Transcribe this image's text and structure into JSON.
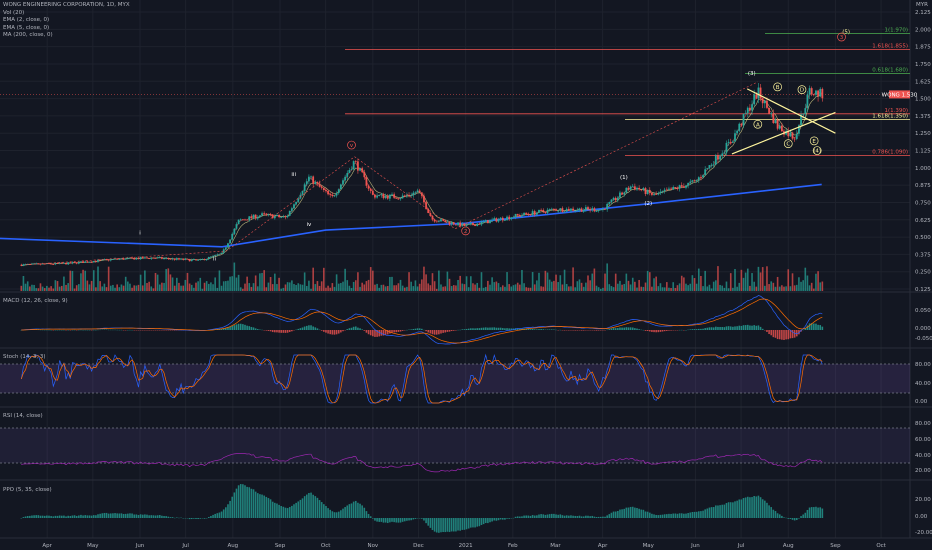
{
  "header": {
    "symbol_line": "WONG ENGINEERING CORPORATION, 1D, MYX",
    "currency": "MYR",
    "indicators": [
      "Vol (20)",
      "EMA (2, close, 0)",
      "EMA (5, close, 0)",
      "MA (200, close, 0)"
    ]
  },
  "panes": {
    "macd": "MACD (12, 26, close, 9)",
    "stoch": "Stoch (14, 3, 3)",
    "rsi": "RSI (14, close)",
    "ppo": "PPO (5, 35, close)"
  },
  "price_tag": {
    "label": "WONG",
    "value": "1.530",
    "color": "#ef5350"
  },
  "colors": {
    "background": "#131722",
    "up": "#26a69a",
    "down": "#ef5350",
    "ma200": "#2962ff",
    "trend": "#fff59d",
    "fib": "#ef5350",
    "fib_green": "#4caf50",
    "oscillator_band": "#7e57c2"
  },
  "chart_data": {
    "type": "candlestick",
    "price_axis_ticks": [
      "2.125",
      "2.000",
      "1.875",
      "1.750",
      "1.625",
      "1.500",
      "1.375",
      "1.250",
      "1.125",
      "1.000",
      "0.875",
      "0.750",
      "0.625",
      "0.500",
      "0.375",
      "0.250",
      "0.125"
    ],
    "x_axis_ticks": [
      "Apr",
      "May",
      "Jun",
      "Jul",
      "Aug",
      "Sep",
      "Oct",
      "Nov",
      "Dec",
      "2021",
      "Feb",
      "Mar",
      "Apr",
      "May",
      "Jun",
      "Jul",
      "Aug",
      "Sep",
      "Oct"
    ],
    "price_path": [
      {
        "date": "2020-03-18",
        "price": 0.3
      },
      {
        "date": "2020-04-15",
        "price": 0.31
      },
      {
        "date": "2020-05-15",
        "price": 0.34
      },
      {
        "date": "2020-06-10",
        "price": 0.35
      },
      {
        "date": "2020-07-10",
        "price": 0.33
      },
      {
        "date": "2020-07-25",
        "price": 0.38
      },
      {
        "date": "2020-08-05",
        "price": 0.62
      },
      {
        "date": "2020-08-20",
        "price": 0.66
      },
      {
        "date": "2020-09-05",
        "price": 0.64
      },
      {
        "date": "2020-09-20",
        "price": 0.93
      },
      {
        "date": "2020-10-05",
        "price": 0.78
      },
      {
        "date": "2020-10-20",
        "price": 1.05
      },
      {
        "date": "2020-11-01",
        "price": 0.8
      },
      {
        "date": "2020-11-20",
        "price": 0.79
      },
      {
        "date": "2020-12-01",
        "price": 0.83
      },
      {
        "date": "2020-12-10",
        "price": 0.63
      },
      {
        "date": "2021-01-01",
        "price": 0.58
      },
      {
        "date": "2021-02-01",
        "price": 0.65
      },
      {
        "date": "2021-03-01",
        "price": 0.7
      },
      {
        "date": "2021-04-01",
        "price": 0.7
      },
      {
        "date": "2021-04-20",
        "price": 0.87
      },
      {
        "date": "2021-05-05",
        "price": 0.8
      },
      {
        "date": "2021-06-01",
        "price": 0.9
      },
      {
        "date": "2021-06-25",
        "price": 1.2
      },
      {
        "date": "2021-07-12",
        "price": 1.55
      },
      {
        "date": "2021-07-25",
        "price": 1.3
      },
      {
        "date": "2021-08-05",
        "price": 1.22
      },
      {
        "date": "2021-08-15",
        "price": 1.55
      },
      {
        "date": "2021-08-23",
        "price": 1.53
      }
    ],
    "ma200": [
      {
        "date": "2020-03-01",
        "price": 0.49
      },
      {
        "date": "2020-07-25",
        "price": 0.43
      },
      {
        "date": "2020-10-01",
        "price": 0.55
      },
      {
        "date": "2021-01-01",
        "price": 0.6
      },
      {
        "date": "2021-05-01",
        "price": 0.74
      },
      {
        "date": "2021-08-23",
        "price": 0.88
      }
    ],
    "fib_levels": [
      {
        "label": "1(1.970)",
        "price": 1.97
      },
      {
        "label": "1.618(1.855)",
        "price": 1.855
      },
      {
        "label": "0.618(1.680)",
        "price": 1.68
      },
      {
        "label": "1(1.390)",
        "price": 1.39
      },
      {
        "label": "1.618(1.350)",
        "price": 1.35
      },
      {
        "label": "0.786(1.090)",
        "price": 1.09
      }
    ],
    "wave_labels": [
      "i",
      "ii",
      "iii",
      "iv",
      "v",
      "2",
      "(1)",
      "(2)",
      "(3)",
      "(4)",
      "(5)",
      "3",
      "A",
      "B",
      "C",
      "D",
      "E"
    ]
  }
}
